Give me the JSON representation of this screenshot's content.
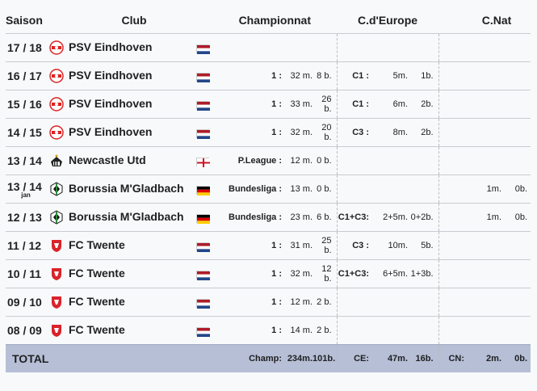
{
  "headers": {
    "saison": "Saison",
    "club": "Club",
    "championnat": "Championnat",
    "europe": "C.d'Europe",
    "nat": "C.Nat"
  },
  "rows": [
    {
      "saison": "17 / 18",
      "jan": "",
      "club": "PSV Eindhoven",
      "crest": "psv",
      "flag": "nl",
      "ch_comp": "",
      "ch_m": "",
      "ch_b": "",
      "eu_comp": "",
      "eu_m": "",
      "eu_b": "",
      "nat_m": "",
      "nat_b": ""
    },
    {
      "saison": "16 / 17",
      "jan": "",
      "club": "PSV Eindhoven",
      "crest": "psv",
      "flag": "nl",
      "ch_comp": "1 :",
      "ch_m": "32 m.",
      "ch_b": "8 b.",
      "eu_comp": "C1 :",
      "eu_m": "5m.",
      "eu_b": "1b.",
      "nat_m": "",
      "nat_b": ""
    },
    {
      "saison": "15 / 16",
      "jan": "",
      "club": "PSV Eindhoven",
      "crest": "psv",
      "flag": "nl",
      "ch_comp": "1 :",
      "ch_m": "33 m.",
      "ch_b": "26 b.",
      "eu_comp": "C1 :",
      "eu_m": "6m.",
      "eu_b": "2b.",
      "nat_m": "",
      "nat_b": ""
    },
    {
      "saison": "14 / 15",
      "jan": "",
      "club": "PSV Eindhoven",
      "crest": "psv",
      "flag": "nl",
      "ch_comp": "1 :",
      "ch_m": "32 m.",
      "ch_b": "20 b.",
      "eu_comp": "C3 :",
      "eu_m": "8m.",
      "eu_b": "2b.",
      "nat_m": "",
      "nat_b": ""
    },
    {
      "saison": "13 / 14",
      "jan": "",
      "club": "Newcastle Utd",
      "crest": "newcastle",
      "flag": "en",
      "ch_comp": "P.League :",
      "ch_m": "12 m.",
      "ch_b": "0 b.",
      "eu_comp": "",
      "eu_m": "",
      "eu_b": "",
      "nat_m": "",
      "nat_b": ""
    },
    {
      "saison": "13 / 14",
      "jan": "jan",
      "club": "Borussia M'Gladbach",
      "crest": "bmg",
      "flag": "de",
      "ch_comp": "Bundesliga :",
      "ch_m": "13 m.",
      "ch_b": "0 b.",
      "eu_comp": "",
      "eu_m": "",
      "eu_b": "",
      "nat_m": "1m.",
      "nat_b": "0b."
    },
    {
      "saison": "12 / 13",
      "jan": "",
      "club": "Borussia M'Gladbach",
      "crest": "bmg",
      "flag": "de",
      "ch_comp": "Bundesliga :",
      "ch_m": "23 m.",
      "ch_b": "6 b.",
      "eu_comp": "C1+C3:",
      "eu_m": "2+5m.",
      "eu_b": "0+2b.",
      "nat_m": "1m.",
      "nat_b": "0b."
    },
    {
      "saison": "11 / 12",
      "jan": "",
      "club": "FC Twente",
      "crest": "twente",
      "flag": "nl",
      "ch_comp": "1 :",
      "ch_m": "31 m.",
      "ch_b": "25 b.",
      "eu_comp": "C3 :",
      "eu_m": "10m.",
      "eu_b": "5b.",
      "nat_m": "",
      "nat_b": ""
    },
    {
      "saison": "10 / 11",
      "jan": "",
      "club": "FC Twente",
      "crest": "twente",
      "flag": "nl",
      "ch_comp": "1 :",
      "ch_m": "32 m.",
      "ch_b": "12 b.",
      "eu_comp": "C1+C3:",
      "eu_m": "6+5m.",
      "eu_b": "1+3b.",
      "nat_m": "",
      "nat_b": ""
    },
    {
      "saison": "09 / 10",
      "jan": "",
      "club": "FC Twente",
      "crest": "twente",
      "flag": "nl",
      "ch_comp": "1 :",
      "ch_m": "12 m.",
      "ch_b": "2 b.",
      "eu_comp": "",
      "eu_m": "",
      "eu_b": "",
      "nat_m": "",
      "nat_b": ""
    },
    {
      "saison": "08 / 09",
      "jan": "",
      "club": "FC Twente",
      "crest": "twente",
      "flag": "nl",
      "ch_comp": "1 :",
      "ch_m": "14 m.",
      "ch_b": "2 b.",
      "eu_comp": "",
      "eu_m": "",
      "eu_b": "",
      "nat_m": "",
      "nat_b": ""
    }
  ],
  "total": {
    "label": "TOTAL",
    "champ_label": "Champ:",
    "champ_m": "234m.",
    "champ_b": "101b.",
    "ce_label": "CE:",
    "ce_m": "47m.",
    "ce_b": "16b.",
    "cn_label": "CN:",
    "cn_m": "2m.",
    "cn_b": "0b."
  },
  "colors": {
    "total_bg": "#b6bfd6",
    "psv_red": "#d22",
    "twente_red": "#d9232a",
    "newcastle": "#222"
  }
}
